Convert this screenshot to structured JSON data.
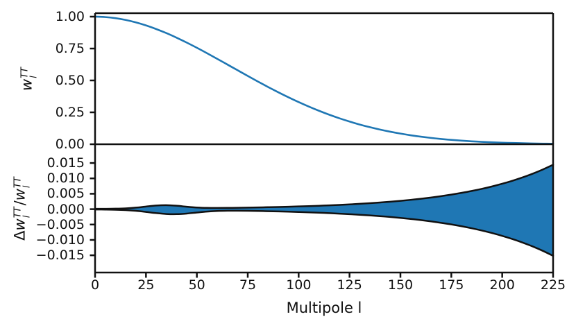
{
  "figure": {
    "background": "#ffffff"
  },
  "colors": {
    "curve": "#1f77b4",
    "band_fill": "#1f77b4",
    "band_edge": "#111111",
    "axis": "#111111",
    "text": "#111111"
  },
  "chart_data": {
    "type": "line",
    "title": "",
    "xlabel": "Multipole l",
    "xlim": [
      0,
      225
    ],
    "xticks": [
      {
        "value": 0,
        "label": "0"
      },
      {
        "value": 25,
        "label": "25"
      },
      {
        "value": 50,
        "label": "50"
      },
      {
        "value": 75,
        "label": "75"
      },
      {
        "value": 100,
        "label": "100"
      },
      {
        "value": 125,
        "label": "125"
      },
      {
        "value": 150,
        "label": "150"
      },
      {
        "value": 175,
        "label": "175"
      },
      {
        "value": 200,
        "label": "200"
      },
      {
        "value": 225,
        "label": "225"
      }
    ],
    "x": [
      0,
      5,
      10,
      15,
      20,
      25,
      30,
      35,
      40,
      45,
      50,
      55,
      60,
      65,
      70,
      75,
      80,
      85,
      90,
      95,
      100,
      105,
      110,
      115,
      120,
      125,
      130,
      135,
      140,
      145,
      150,
      155,
      160,
      165,
      170,
      175,
      180,
      185,
      190,
      195,
      200,
      205,
      210,
      215,
      220,
      225
    ],
    "panels": [
      {
        "id": "beam-window",
        "ylabel_text": "w_l^TT",
        "ylabel_segments": [
          {
            "t": "w",
            "italic": true
          },
          {
            "sup": "TT",
            "sub": "l"
          }
        ],
        "ylim": [
          0,
          1.0272
        ],
        "yticks": [
          {
            "value": 1.0,
            "label": "1.00"
          },
          {
            "value": 0.75,
            "label": "0.75"
          },
          {
            "value": 0.5,
            "label": "0.50"
          },
          {
            "value": 0.25,
            "label": "0.25"
          },
          {
            "value": 0.0,
            "label": "0.00"
          }
        ],
        "series": [
          {
            "name": "wl_TT",
            "type": "line",
            "color": "#1f77b4",
            "linewidth": 2.6,
            "values": [
              1.0,
              0.9967,
              0.988,
              0.9741,
              0.955,
              0.9312,
              0.903,
              0.871,
              0.8354,
              0.7969,
              0.7561,
              0.7134,
              0.6694,
              0.6247,
              0.5799,
              0.5352,
              0.4914,
              0.4486,
              0.4074,
              0.3679,
              0.3304,
              0.2951,
              0.2621,
              0.2316,
              0.2035,
              0.1778,
              0.1545,
              0.1336,
              0.1148,
              0.0981,
              0.0834,
              0.0705,
              0.0593,
              0.0496,
              0.0413,
              0.0341,
              0.0281,
              0.023,
              0.0187,
              0.0152,
              0.0122,
              0.0097,
              0.0078,
              0.0061,
              0.0048,
              0.0038
            ]
          }
        ]
      },
      {
        "id": "fractional-beam-uncertainty",
        "ylabel_text": "Δw_l^TT/w_l^TT",
        "ylabel_segments": [
          {
            "t": "Δ"
          },
          {
            "t": "w",
            "italic": true
          },
          {
            "sup": "TT",
            "sub": "l"
          },
          {
            "t": "/"
          },
          {
            "t": "w",
            "italic": true
          },
          {
            "sup": "TT",
            "sub": "l"
          }
        ],
        "ylim": [
          -0.0206,
          0.0211
        ],
        "yticks": [
          {
            "value": 0.015,
            "label": "0.015"
          },
          {
            "value": 0.01,
            "label": "0.010"
          },
          {
            "value": 0.005,
            "label": "0.005"
          },
          {
            "value": 0.0,
            "label": "0.000"
          },
          {
            "value": -0.005,
            "label": "−0.005"
          },
          {
            "value": -0.01,
            "label": "−0.010"
          },
          {
            "value": -0.015,
            "label": "−0.015"
          }
        ],
        "series": [
          {
            "name": "uncertainty-band",
            "type": "band",
            "fill": "#1f77b4",
            "edge": "#111111",
            "edgewidth": 2.5,
            "upper": [
              9.6e-05,
              0.000114,
              0.000155,
              0.000263,
              0.000493,
              0.000846,
              0.001186,
              0.001301,
              0.001121,
              0.000796,
              0.000532,
              0.000405,
              0.000383,
              0.000409,
              0.000454,
              0.000507,
              0.000567,
              0.000634,
              0.000709,
              0.000792,
              0.000886,
              0.000991,
              0.001108,
              0.001239,
              0.001385,
              0.001548,
              0.001731,
              0.001935,
              0.002164,
              0.002419,
              0.002705,
              0.003024,
              0.003381,
              0.00378,
              0.004227,
              0.004726,
              0.005284,
              0.005908,
              0.006605,
              0.007385,
              0.008257,
              0.009232,
              0.010322,
              0.01154,
              0.012903,
              0.014426
            ],
            "lower": [
              -0.000105,
              -0.000132,
              -0.000191,
              -0.000317,
              -0.000551,
              -0.000899,
              -0.001286,
              -0.00157,
              -0.001622,
              -0.001429,
              -0.001103,
              -0.000794,
              -0.000593,
              -0.000508,
              -0.000503,
              -0.00054,
              -0.000599,
              -0.000667,
              -0.000746,
              -0.000834,
              -0.000932,
              -0.001042,
              -0.001165,
              -0.001303,
              -0.001457,
              -0.001629,
              -0.001821,
              -0.002036,
              -0.002276,
              -0.002545,
              -0.002845,
              -0.003181,
              -0.003557,
              -0.003977,
              -0.004446,
              -0.004971,
              -0.005558,
              -0.006214,
              -0.006948,
              -0.007768,
              -0.008685,
              -0.00971,
              -0.010857,
              -0.012139,
              -0.013572,
              -0.015174
            ]
          }
        ]
      }
    ]
  }
}
